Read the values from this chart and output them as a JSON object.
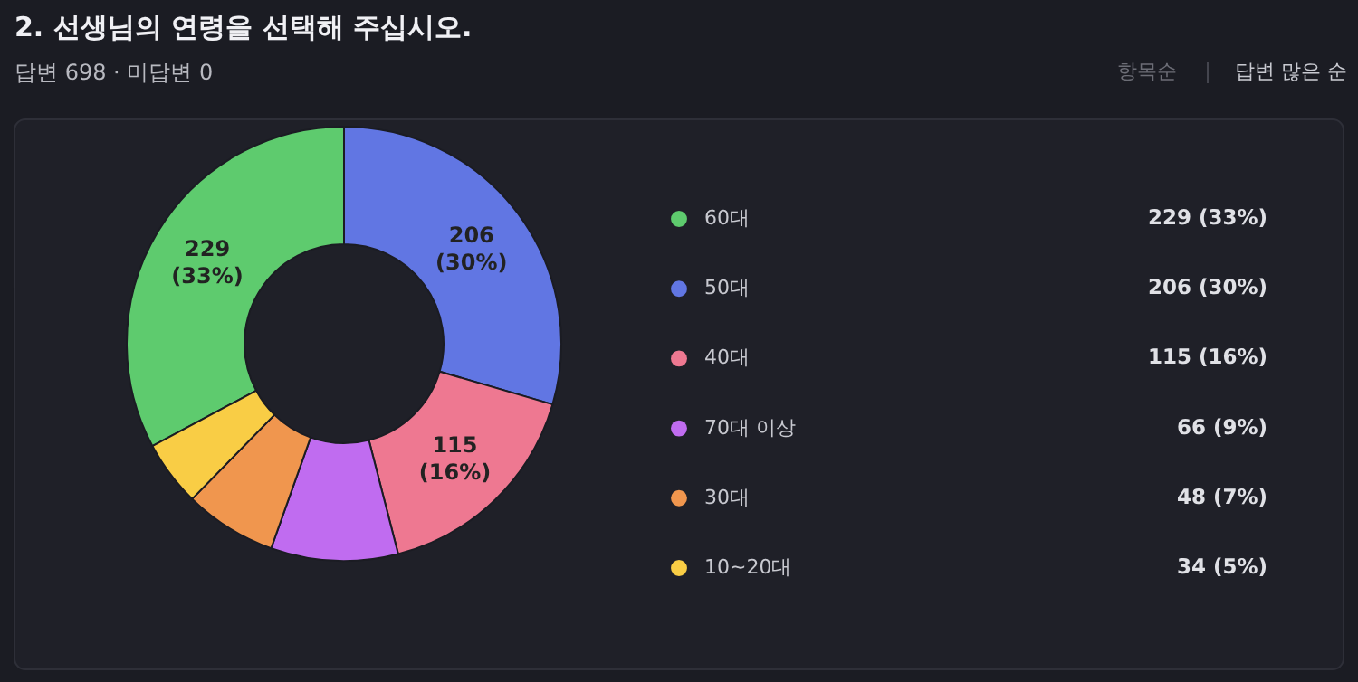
{
  "chart_data": {
    "type": "donut",
    "title": "2. 선생님의 연령을 선택해 주십시오.",
    "subtitle": "답변 698  ·  미답변 0",
    "annotations": [
      "항목순",
      "답변 많은 순"
    ],
    "categories": [
      "60대",
      "50대",
      "40대",
      "70대 이상",
      "30대",
      "10~20대"
    ],
    "values": [
      229,
      206,
      115,
      66,
      48,
      34
    ],
    "colors": [
      "#5ecb6e",
      "#6176e3",
      "#ee7891",
      "#c06cf0",
      "#f0964e",
      "#f9cd45"
    ],
    "value_labels": [
      "229 (33%)",
      "206 (30%)",
      "115 (16%)",
      "66 (9%)",
      "48 (7%)",
      "34 (5%)"
    ],
    "legend": "right"
  }
}
